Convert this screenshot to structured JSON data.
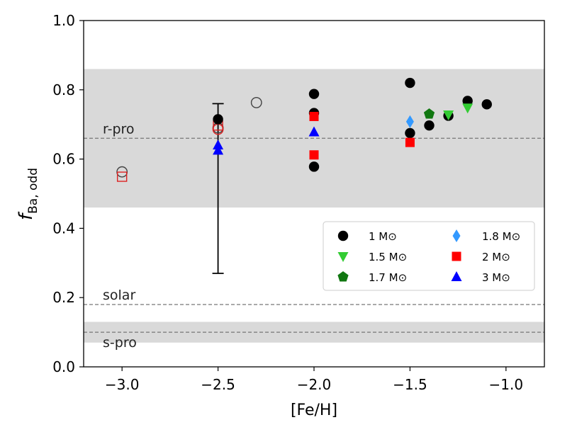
{
  "chart_data": {
    "type": "scatter",
    "xlabel": "[Fe/H]",
    "ylabel": "f",
    "ylabel_sub": "Ba, odd",
    "xlim": [
      -3.2,
      -0.8
    ],
    "ylim": [
      0.0,
      1.0
    ],
    "xticks": [
      -3.0,
      -2.5,
      -2.0,
      -1.5,
      -1.0
    ],
    "xtick_labels": [
      "−3.0",
      "−2.5",
      "−2.0",
      "−1.5",
      "−1.0"
    ],
    "yticks": [
      0.0,
      0.2,
      0.4,
      0.6,
      0.8,
      1.0
    ],
    "ytick_labels": [
      "0.0",
      "0.2",
      "0.4",
      "0.6",
      "0.8",
      "1.0"
    ],
    "bands": [
      {
        "name": "r-pro band",
        "y0": 0.46,
        "y1": 0.86,
        "color": "#d9d9d9"
      },
      {
        "name": "s-pro band",
        "y0": 0.07,
        "y1": 0.13,
        "color": "#d9d9d9"
      }
    ],
    "reference_lines": [
      {
        "label": "r-pro",
        "y": 0.66
      },
      {
        "label": "solar",
        "y": 0.18
      },
      {
        "label": "s-pro",
        "y": 0.1
      }
    ],
    "series": [
      {
        "name": "1 M⊙",
        "marker": "circle",
        "color": "#000000",
        "points": [
          [
            -2.5,
            0.715
          ],
          [
            -2.0,
            0.788
          ],
          [
            -2.0,
            0.733
          ],
          [
            -2.0,
            0.578
          ],
          [
            -1.5,
            0.82
          ],
          [
            -1.5,
            0.675
          ],
          [
            -1.4,
            0.697
          ],
          [
            -1.3,
            0.725
          ],
          [
            -1.2,
            0.768
          ],
          [
            -1.1,
            0.758
          ]
        ]
      },
      {
        "name": "1.5 M⊙",
        "marker": "triangle-down",
        "color": "#33cc33",
        "points": [
          [
            -1.3,
            0.728
          ],
          [
            -1.2,
            0.748
          ]
        ]
      },
      {
        "name": "1.7 M⊙",
        "marker": "pentagon",
        "color": "#117711",
        "points": [
          [
            -1.4,
            0.73
          ]
        ]
      },
      {
        "name": "1.8 M⊙",
        "marker": "diamond",
        "color": "#3399ff",
        "points": [
          [
            -1.5,
            0.708
          ]
        ]
      },
      {
        "name": "2 M⊙",
        "marker": "square",
        "color": "#ff0000",
        "points": [
          [
            -2.0,
            0.723
          ],
          [
            -2.0,
            0.612
          ],
          [
            -1.5,
            0.648
          ]
        ]
      },
      {
        "name": "3 M⊙",
        "marker": "triangle-up",
        "color": "#0000ff",
        "points": [
          [
            -2.5,
            0.64
          ],
          [
            -2.5,
            0.625
          ],
          [
            -2.0,
            0.678
          ]
        ]
      }
    ],
    "observations": [
      {
        "marker": "open-circle",
        "color": "#444444",
        "points": [
          [
            -3.0,
            0.563
          ],
          [
            -2.5,
            0.69
          ],
          [
            -2.3,
            0.763
          ]
        ]
      },
      {
        "marker": "open-square",
        "color": "#dd2222",
        "points": [
          [
            -3.0,
            0.549
          ],
          [
            -2.5,
            0.697
          ]
        ]
      },
      {
        "marker": "open-circle",
        "color": "#dd2222",
        "points": [
          [
            -2.5,
            0.686
          ]
        ]
      }
    ],
    "errorbars": [
      {
        "x": -2.5,
        "y_low": 0.27,
        "y_high": 0.76
      }
    ],
    "legend": {
      "position": "lower-right",
      "columns": 2
    }
  }
}
